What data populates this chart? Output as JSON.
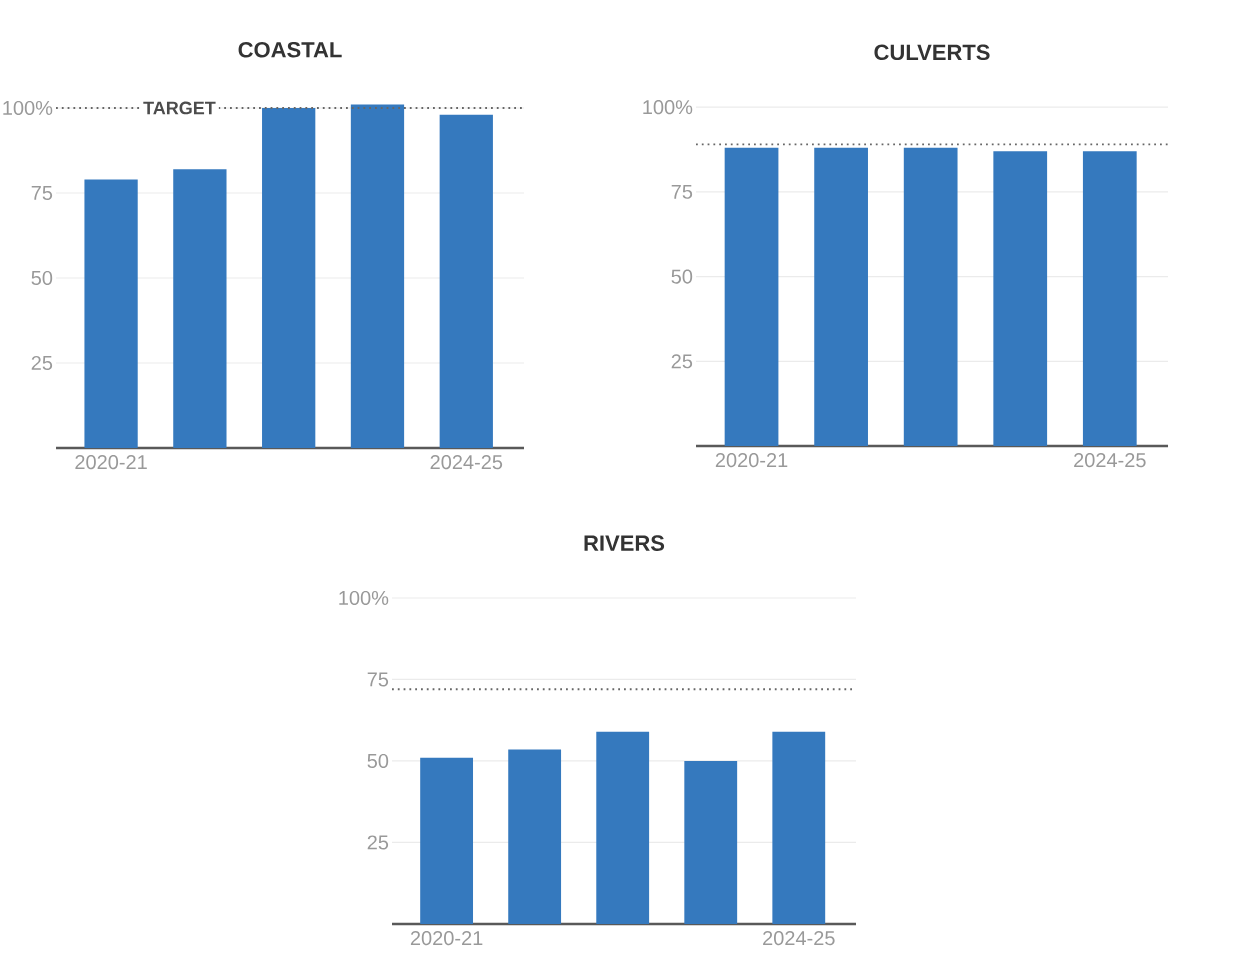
{
  "chart_data": [
    {
      "type": "bar",
      "title": "COASTAL",
      "categories": [
        "2020-21",
        null,
        null,
        null,
        "2024-25"
      ],
      "values": [
        79,
        82,
        100,
        101,
        98
      ],
      "color": "#3579be",
      "ylim": [
        0,
        101
      ],
      "yticks": [
        {
          "value": 25,
          "label": "25"
        },
        {
          "value": 50,
          "label": "50"
        },
        {
          "value": 75,
          "label": "75"
        },
        {
          "value": 100,
          "label": "100%"
        }
      ],
      "grid": "y",
      "ref_lines": [
        {
          "axis": "y",
          "value": 100,
          "label": "TARGET",
          "color": "#666666",
          "line_style": "dotted"
        }
      ]
    },
    {
      "type": "bar",
      "title": "CULVERTS",
      "categories": [
        "2020-21",
        null,
        null,
        null,
        "2024-25"
      ],
      "values": [
        88,
        88,
        88,
        87,
        87
      ],
      "color": "#3579be",
      "ylim": [
        0,
        100
      ],
      "yticks": [
        {
          "value": 25,
          "label": "25"
        },
        {
          "value": 50,
          "label": "50"
        },
        {
          "value": 75,
          "label": "75"
        },
        {
          "value": 100,
          "label": "100%"
        }
      ],
      "grid": "y",
      "ref_lines": [
        {
          "axis": "y",
          "value": 89,
          "color": "#666666",
          "line_style": "dotted"
        }
      ]
    },
    {
      "type": "bar",
      "title": "RIVERS",
      "categories": [
        "2020-21",
        null,
        null,
        null,
        "2024-25"
      ],
      "values": [
        51,
        53.5,
        59,
        50,
        59
      ],
      "color": "#3579be",
      "ylim": [
        0,
        100
      ],
      "yticks": [
        {
          "value": 25,
          "label": "25"
        },
        {
          "value": 50,
          "label": "50"
        },
        {
          "value": 75,
          "label": "75"
        },
        {
          "value": 100,
          "label": "100%"
        }
      ],
      "grid": "y",
      "ref_lines": [
        {
          "axis": "y",
          "value": 72,
          "color": "#666666",
          "line_style": "dotted"
        }
      ]
    }
  ]
}
